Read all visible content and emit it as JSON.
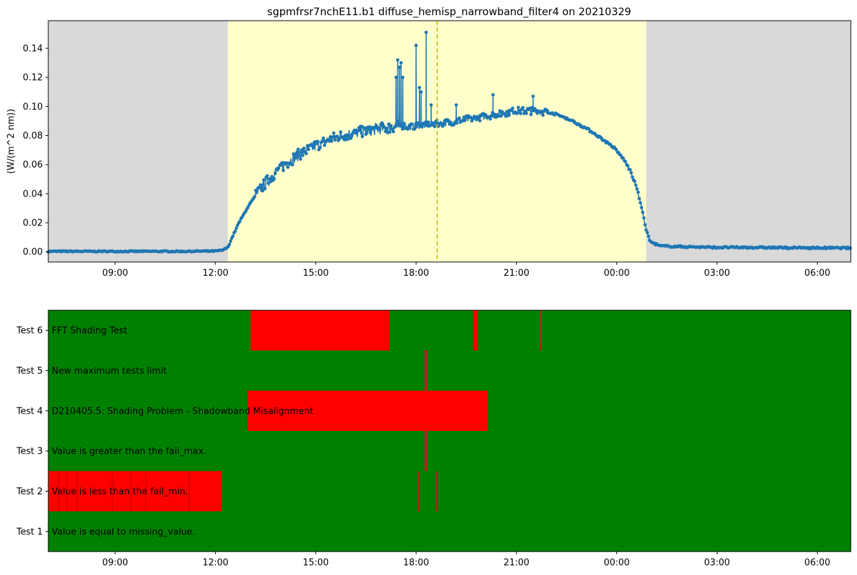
{
  "chart_data": [
    {
      "type": "line",
      "title": "sgpmfrsr7nchE11.b1 diffuse_hemisp_narrowband_filter4 on 20210329",
      "ylabel": "(W/(m^2 nm))",
      "xlabel": "",
      "x_axis": "time of day (hours since 00:00 on 20210329, wrapping past midnight)",
      "xlim": [
        7.0,
        31.0
      ],
      "ylim": [
        -0.007,
        0.159
      ],
      "x_ticks": [
        9,
        12,
        15,
        18,
        21,
        24,
        27,
        30
      ],
      "x_tick_labels": [
        "09:00",
        "12:00",
        "15:00",
        "18:00",
        "21:00",
        "00:00",
        "03:00",
        "06:00"
      ],
      "y_ticks": [
        0.0,
        0.02,
        0.04,
        0.06,
        0.08,
        0.1,
        0.12,
        0.14
      ],
      "y_tick_labels": [
        "0.00",
        "0.02",
        "0.04",
        "0.06",
        "0.08",
        "0.10",
        "0.12",
        "0.14"
      ],
      "grid": false,
      "series_color": "#1f77b4",
      "night_color": "#d9d9d9",
      "day_color": "#ffffcc",
      "daylight_span": [
        12.37,
        24.88
      ],
      "solar_noon_line": {
        "x": 18.63,
        "color": "#c8b400",
        "style": "dashed"
      },
      "series": [
        {
          "x": [
            7.0,
            8.0,
            9.0,
            10.0,
            11.0,
            12.0,
            12.2,
            12.37,
            12.5,
            12.7,
            13.0,
            13.3,
            13.6,
            14.0,
            14.5,
            15.0,
            15.5,
            16.0,
            16.5,
            17.0,
            17.3,
            17.5,
            17.8,
            18.0,
            18.3,
            18.6,
            19.0,
            19.5,
            20.0,
            20.5,
            21.0,
            21.5,
            22.0,
            22.5,
            23.0,
            23.3,
            23.6,
            23.9,
            24.2,
            24.4,
            24.6,
            24.75,
            24.88,
            25.0,
            25.3,
            26.0,
            27.0,
            28.0,
            29.0,
            30.0,
            31.0
          ],
          "y": [
            0.0003,
            0.0003,
            0.0003,
            0.0003,
            0.0003,
            0.0005,
            0.001,
            0.003,
            0.01,
            0.02,
            0.032,
            0.042,
            0.05,
            0.059,
            0.067,
            0.073,
            0.078,
            0.081,
            0.083,
            0.085,
            0.086,
            0.087,
            0.086,
            0.087,
            0.087,
            0.088,
            0.089,
            0.091,
            0.093,
            0.095,
            0.097,
            0.097,
            0.096,
            0.092,
            0.086,
            0.082,
            0.077,
            0.072,
            0.064,
            0.056,
            0.044,
            0.03,
            0.015,
            0.007,
            0.004,
            0.0035,
            0.003,
            0.003,
            0.0028,
            0.0027,
            0.0026
          ]
        }
      ],
      "spikes": [
        {
          "x": 17.4,
          "y": 0.12
        },
        {
          "x": 17.45,
          "y": 0.132
        },
        {
          "x": 17.5,
          "y": 0.127
        },
        {
          "x": 17.55,
          "y": 0.13
        },
        {
          "x": 17.6,
          "y": 0.12
        },
        {
          "x": 18.0,
          "y": 0.142
        },
        {
          "x": 18.1,
          "y": 0.113
        },
        {
          "x": 18.15,
          "y": 0.11
        },
        {
          "x": 18.3,
          "y": 0.151
        },
        {
          "x": 18.45,
          "y": 0.101
        },
        {
          "x": 19.2,
          "y": 0.101
        },
        {
          "x": 20.3,
          "y": 0.108
        },
        {
          "x": 21.5,
          "y": 0.107
        }
      ]
    },
    {
      "type": "heatmap",
      "title": "",
      "xlim": [
        7.0,
        31.0
      ],
      "x_ticks": [
        9,
        12,
        15,
        18,
        21,
        24,
        27,
        30
      ],
      "x_tick_labels": [
        "09:00",
        "12:00",
        "15:00",
        "18:00",
        "21:00",
        "00:00",
        "03:00",
        "06:00"
      ],
      "pass_color": "#008000",
      "fail_color": "#ff0000",
      "rows": [
        {
          "label": "Test 6",
          "description": "FFT Shading Test",
          "fail_intervals": [
            [
              13.05,
              17.2
            ],
            [
              19.7,
              19.85
            ],
            [
              21.7,
              21.75
            ]
          ]
        },
        {
          "label": "Test 5",
          "description": "New maximum tests limit",
          "fail_intervals": [
            [
              18.25,
              18.35
            ]
          ]
        },
        {
          "label": "Test 4",
          "description": "D210405.5: Shading Problem - Shadowband Misalignment",
          "fail_intervals": [
            [
              12.95,
              20.15
            ]
          ]
        },
        {
          "label": "Test 3",
          "description": "Value is greater than the fail_max.",
          "fail_intervals": [
            [
              18.25,
              18.35
            ]
          ]
        },
        {
          "label": "Test 2",
          "description": "Value is less than the fail_min.",
          "fail_intervals": [
            [
              7.0,
              12.2
            ],
            [
              18.05,
              18.08
            ],
            [
              18.6,
              18.63
            ]
          ]
        },
        {
          "label": "Test 1",
          "description": "Value is equal to missing_value.",
          "fail_intervals": []
        }
      ]
    }
  ]
}
